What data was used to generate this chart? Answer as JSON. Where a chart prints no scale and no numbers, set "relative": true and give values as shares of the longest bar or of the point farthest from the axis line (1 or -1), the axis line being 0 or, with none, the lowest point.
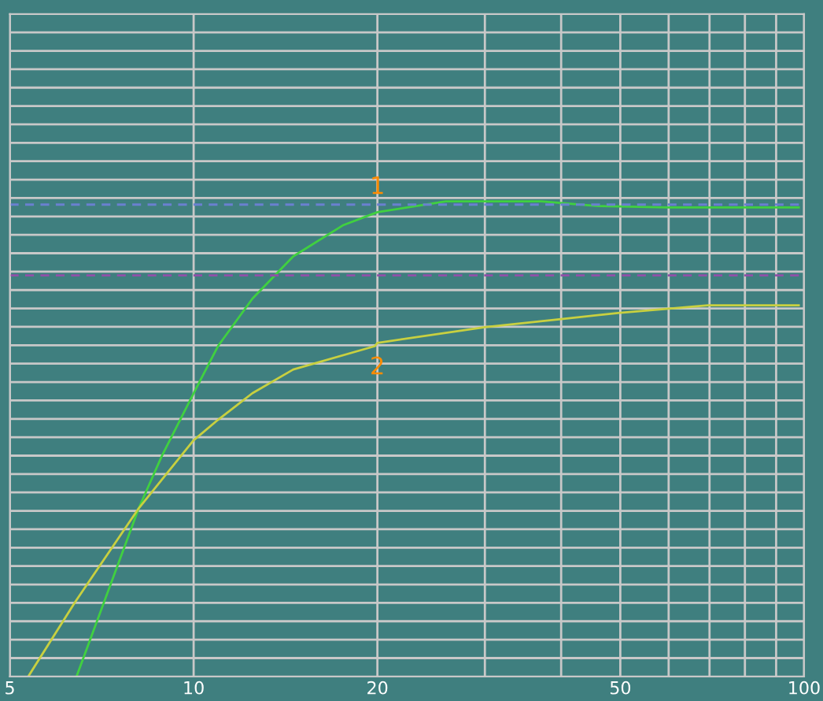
{
  "chart_data": {
    "type": "line",
    "relative": true,
    "log": "x",
    "xlim": [
      5,
      100
    ],
    "xticks": [
      5,
      10,
      20,
      {
        "value": 30,
        "label": null
      },
      {
        "value": 40,
        "label": null
      },
      50,
      {
        "value": 60,
        "label": null
      },
      {
        "value": 70,
        "label": null
      },
      {
        "value": 80,
        "label": null
      },
      {
        "value": 90,
        "label": null
      },
      100
    ],
    "grid": true,
    "legend": false,
    "marker": "none",
    "line_style": "solid",
    "series": [
      {
        "name": "1",
        "color": "#40d040",
        "x": [
          6.43,
          8.13,
          8.87,
          10,
          10.96,
          12.48,
          14.56,
          17.6,
          20,
          25.9,
          30,
          37.1,
          46,
          59.8,
          98
        ],
        "values": [
          0,
          0.354,
          0.464,
          0.596,
          0.695,
          0.795,
          0.884,
          0.95,
          0.977,
          1,
          1,
          1,
          0.99,
          0.987,
          0.987
        ]
      },
      {
        "name": "2",
        "color": "#c8d040",
        "x": [
          5.36,
          6.39,
          8.13,
          10,
          10.96,
          12.48,
          14.56,
          19.8,
          20,
          30,
          40,
          49.6,
          69.6,
          98
        ],
        "values": [
          0,
          0.156,
          0.354,
          0.497,
          0.54,
          0.596,
          0.646,
          0.695,
          0.702,
          0.735,
          0.752,
          0.765,
          0.781,
          0.781
        ]
      }
    ],
    "ref_lines": [
      {
        "axis": "y",
        "value": 0.993,
        "label": null,
        "color": "#6a80d0",
        "line_style": "dashed"
      },
      {
        "axis": "y",
        "value": 0.844,
        "label": null,
        "color": "#9050a8",
        "line_style": "dashed"
      }
    ]
  }
}
